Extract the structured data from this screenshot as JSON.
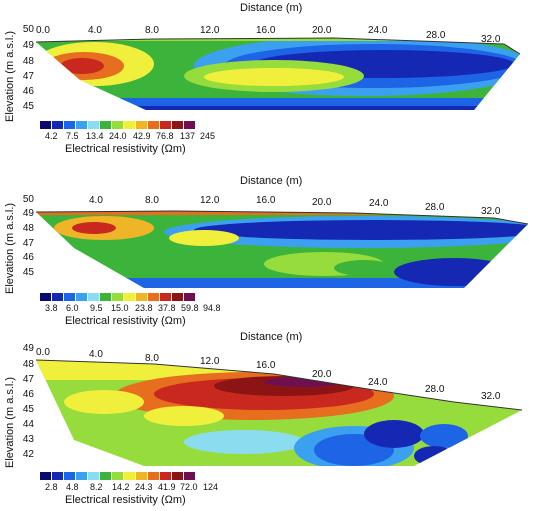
{
  "panels": [
    {
      "title": "Distance (m)",
      "ylabel": "Elevation (m a.s.l.)",
      "yticks": [
        "50",
        "49",
        "48",
        "47",
        "46",
        "45"
      ],
      "xticks": [
        "0.0",
        "4.0",
        "8.0",
        "12.0",
        "16.0",
        "20.0",
        "24.0",
        "28.0",
        "32.0"
      ],
      "colorbar_labels": [
        "4.2",
        "7.5",
        "13.4",
        "24.0",
        "42.9",
        "76.8",
        "137",
        "245"
      ],
      "colorbar_title": "Electrical resistivity (Ωm)"
    },
    {
      "title": "Distance (m)",
      "ylabel": "Elevation (m a.s.l.)",
      "yticks": [
        "50",
        "49",
        "48",
        "47",
        "46",
        "45"
      ],
      "xticks": [
        "4.0",
        "8.0",
        "12.0",
        "16.0",
        "20.0",
        "24.0",
        "28.0",
        "32.0"
      ],
      "colorbar_labels": [
        "3.8",
        "6.0",
        "9.5",
        "15.0",
        "23.8",
        "37.8",
        "59.8",
        "94.8"
      ],
      "colorbar_title": "Electrical resistivity (Ωm)"
    },
    {
      "title": "Distance (m)",
      "ylabel": "Elevation (m a.s.l.)",
      "yticks": [
        "49",
        "48",
        "47",
        "46",
        "45",
        "44",
        "43",
        "42"
      ],
      "xticks": [
        "0.0",
        "4.0",
        "8.0",
        "12.0",
        "16.0",
        "20.0",
        "24.0",
        "28.0",
        "32.0"
      ],
      "colorbar_labels": [
        "2.8",
        "4.8",
        "8.2",
        "14.2",
        "24.3",
        "41.9",
        "72.0",
        "124"
      ],
      "colorbar_title": "Electrical resistivity (Ωm)"
    }
  ],
  "colors": {
    "scale": [
      "#0a0a6e",
      "#1428b4",
      "#1e64e6",
      "#3ca0f0",
      "#8cdcf0",
      "#3cb43c",
      "#96dc3c",
      "#f0f03c",
      "#f0b428",
      "#e66e1e",
      "#c8281e",
      "#8c1414",
      "#6e1050"
    ]
  }
}
